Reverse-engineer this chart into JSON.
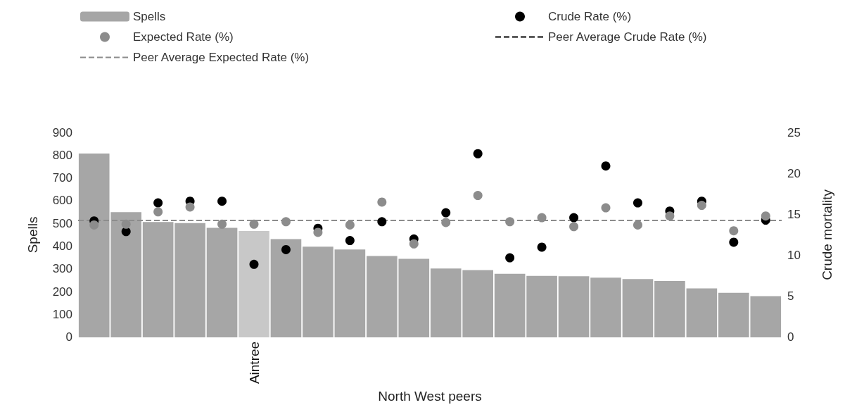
{
  "chart_data": {
    "type": "bar",
    "xlabel": "North West peers",
    "ylabel": "Spells",
    "y2label": "Crude mortality",
    "categories": [
      null,
      null,
      null,
      null,
      null,
      "Aintree",
      null,
      null,
      null,
      null,
      null,
      null,
      null,
      null,
      null,
      null,
      null,
      null,
      null,
      null,
      null,
      null
    ],
    "series": [
      {
        "name": "Spells",
        "color": "#a6a6a6",
        "colors": [
          "#a6a6a6",
          "#a6a6a6",
          "#a6a6a6",
          "#a6a6a6",
          "#a6a6a6",
          "#c8c8c8",
          "#a6a6a6",
          "#a6a6a6",
          "#a6a6a6",
          "#a6a6a6",
          "#a6a6a6",
          "#a6a6a6",
          "#a6a6a6",
          "#a6a6a6",
          "#a6a6a6",
          "#a6a6a6",
          "#a6a6a6",
          "#a6a6a6",
          "#a6a6a6",
          "#a6a6a6",
          "#a6a6a6",
          "#a6a6a6"
        ],
        "values": [
          807,
          550,
          506,
          502,
          481,
          467,
          431,
          398,
          386,
          357,
          345,
          302,
          295,
          279,
          270,
          268,
          262,
          256,
          247,
          215,
          195,
          181
        ]
      },
      {
        "name": "Crude Rate (%)",
        "type": "scatter",
        "axis": "y2",
        "color": "#000000",
        "values": [
          14.2,
          12.9,
          16.4,
          16.6,
          16.6,
          8.9,
          10.7,
          13.3,
          11.8,
          14.1,
          12.0,
          15.2,
          22.4,
          9.7,
          11.0,
          14.6,
          20.9,
          16.4,
          15.4,
          16.6,
          11.6,
          14.3
        ]
      },
      {
        "name": "Expected Rate (%)",
        "type": "scatter",
        "axis": "y2",
        "color": "#8c8c8c",
        "values": [
          13.7,
          13.8,
          15.3,
          15.9,
          13.8,
          13.8,
          14.1,
          12.8,
          13.7,
          16.5,
          11.4,
          14.0,
          17.3,
          14.1,
          14.6,
          13.5,
          15.8,
          13.7,
          14.8,
          16.1,
          13.0,
          14.8
        ]
      }
    ],
    "ref_lines": [
      {
        "axis": "y2",
        "value": null,
        "label": "Peer Average Crude Rate (%)",
        "color": "#000000",
        "line_style": "dashed"
      },
      {
        "axis": "y2",
        "value": 14.3,
        "label": "Peer Average Expected Rate (%)",
        "color": "#8c8c8c",
        "line_style": "dashed"
      }
    ],
    "ylim": [
      0,
      900
    ],
    "yticks": [
      0,
      100,
      200,
      300,
      400,
      500,
      600,
      700,
      800,
      900
    ],
    "y2lim": [
      0,
      25
    ],
    "y2ticks": [
      0,
      5,
      10,
      15,
      20,
      25
    ],
    "marker": "circle",
    "grid": false,
    "legend": "top"
  }
}
